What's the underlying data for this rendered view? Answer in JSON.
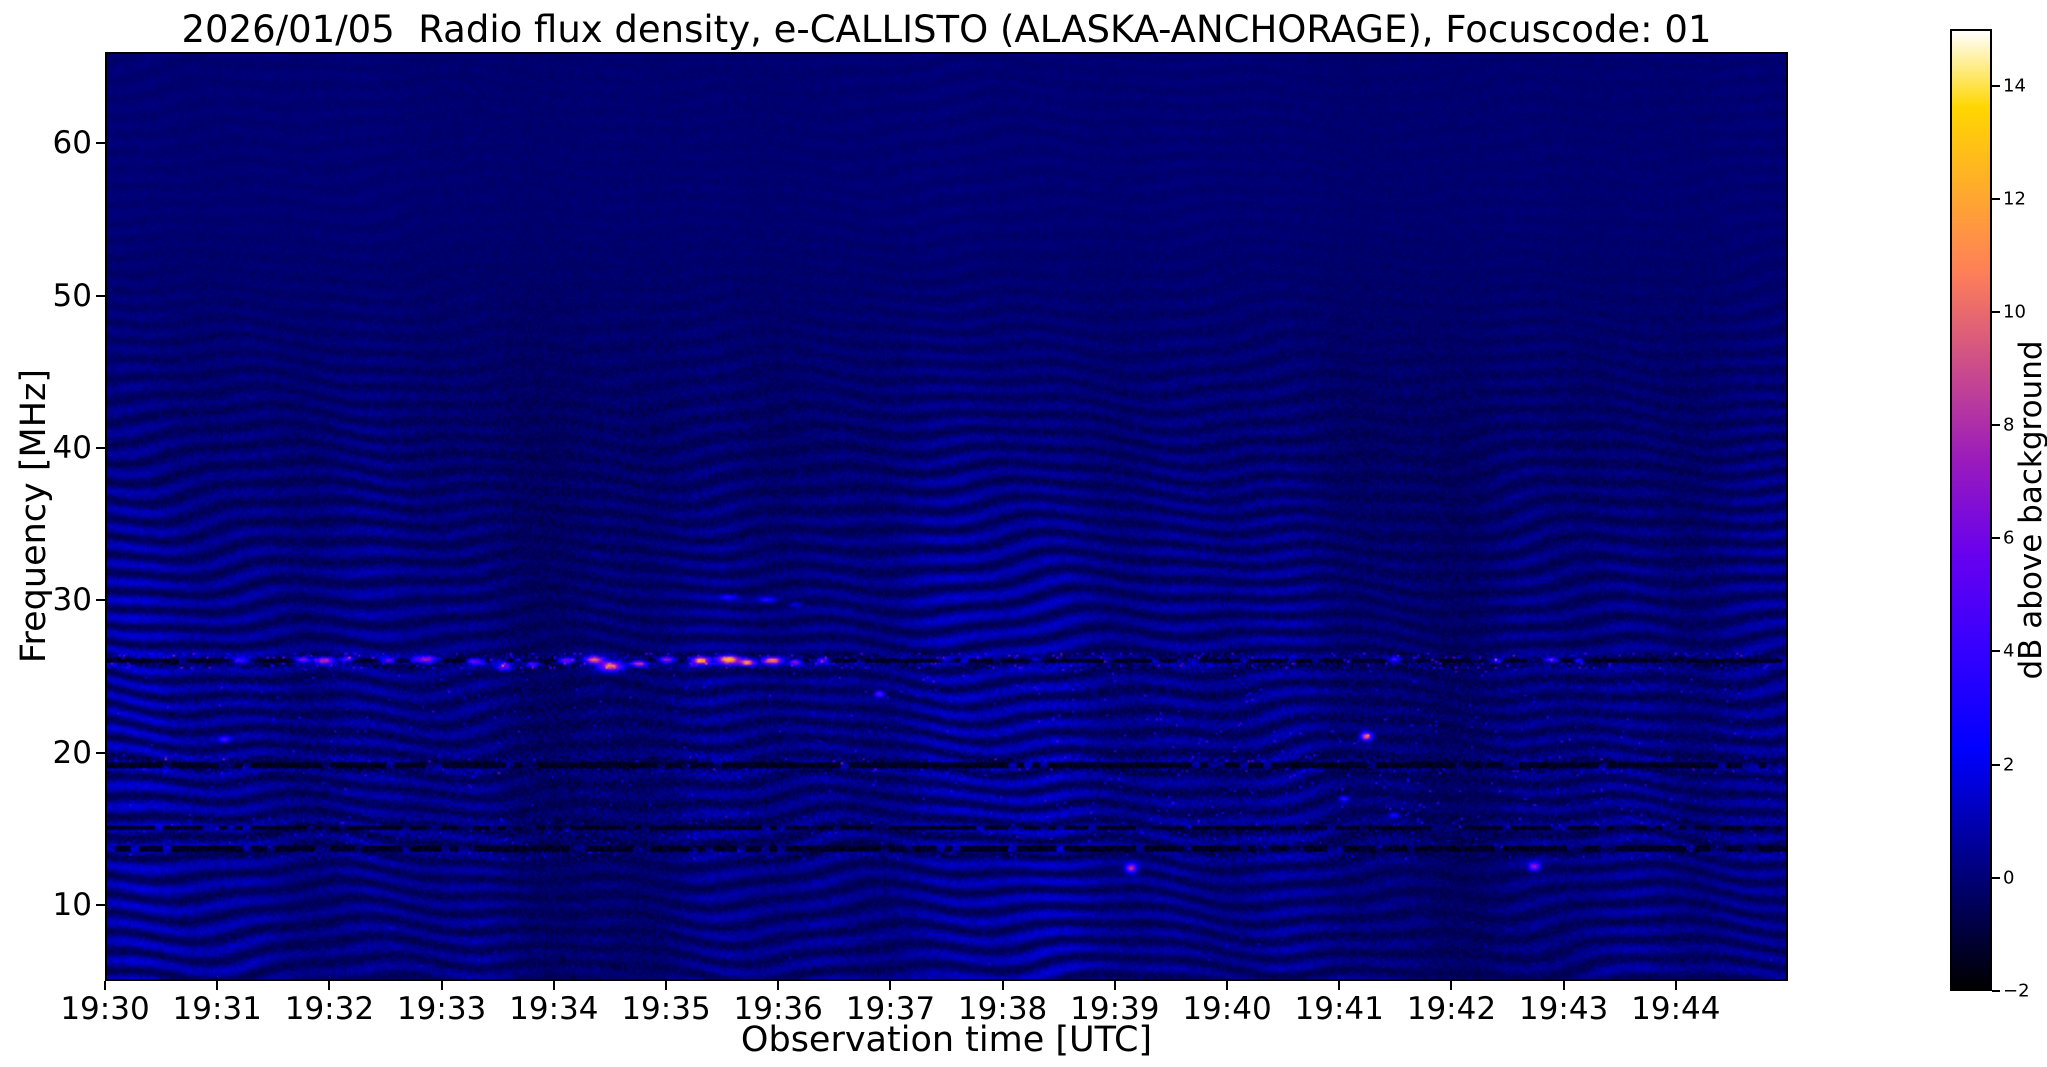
{
  "chart_data": {
    "type": "heatmap",
    "title": "2026/01/05  Radio flux density, e-CALLISTO (ALASKA-ANCHORAGE), Focuscode: 01",
    "xlabel": "Observation time [UTC]",
    "ylabel": "Frequency [MHz]",
    "colorbar_label": "dB above background",
    "x_range_minutes_after_1930utc": [
      0,
      15
    ],
    "y_range_mhz": [
      5,
      66
    ],
    "value_range_db": [
      -2,
      15
    ],
    "x_ticks": [
      {
        "label": "19:30",
        "minute": 0
      },
      {
        "label": "19:31",
        "minute": 1
      },
      {
        "label": "19:32",
        "minute": 2
      },
      {
        "label": "19:33",
        "minute": 3
      },
      {
        "label": "19:34",
        "minute": 4
      },
      {
        "label": "19:35",
        "minute": 5
      },
      {
        "label": "19:36",
        "minute": 6
      },
      {
        "label": "19:37",
        "minute": 7
      },
      {
        "label": "19:38",
        "minute": 8
      },
      {
        "label": "19:39",
        "minute": 9
      },
      {
        "label": "19:40",
        "minute": 10
      },
      {
        "label": "19:41",
        "minute": 11
      },
      {
        "label": "19:42",
        "minute": 12
      },
      {
        "label": "19:43",
        "minute": 13
      },
      {
        "label": "19:44",
        "minute": 14
      }
    ],
    "y_ticks": [
      {
        "label": "10",
        "mhz": 10
      },
      {
        "label": "20",
        "mhz": 20
      },
      {
        "label": "30",
        "mhz": 30
      },
      {
        "label": "40",
        "mhz": 40
      },
      {
        "label": "50",
        "mhz": 50
      },
      {
        "label": "60",
        "mhz": 60
      }
    ],
    "colorbar_ticks": [
      {
        "label": "−2",
        "db": -2
      },
      {
        "label": "0",
        "db": 0
      },
      {
        "label": "2",
        "db": 2
      },
      {
        "label": "4",
        "db": 4
      },
      {
        "label": "6",
        "db": 6
      },
      {
        "label": "8",
        "db": 8
      },
      {
        "label": "10",
        "db": 10
      },
      {
        "label": "12",
        "db": 12
      },
      {
        "label": "14",
        "db": 14
      }
    ],
    "colormap": {
      "name": "gnuplot2-like",
      "stops": [
        [
          0.0,
          "#000000"
        ],
        [
          0.1,
          "#000066"
        ],
        [
          0.2,
          "#0000cc"
        ],
        [
          0.25,
          "#0000ff"
        ],
        [
          0.35,
          "#3300ff"
        ],
        [
          0.45,
          "#6600f0"
        ],
        [
          0.55,
          "#991abd"
        ],
        [
          0.65,
          "#cc4d8a"
        ],
        [
          0.75,
          "#ff8057"
        ],
        [
          0.85,
          "#ffb324"
        ],
        [
          0.92,
          "#ffd600"
        ],
        [
          0.96,
          "#ffeb80"
        ],
        [
          1.0,
          "#ffffff"
        ]
      ]
    },
    "features": {
      "background_db": 0,
      "ionospheric_ripples": {
        "wavelength_mhz": 1.2,
        "amp_db_low_freq": 1.5,
        "fade_above_mhz": 30,
        "gone_above_mhz": 52
      },
      "speckle_bands": [
        {
          "f0": 25.5,
          "f1": 26.5,
          "boost": 0.9,
          "p": 0.96,
          "spike": 3.5
        },
        {
          "f0": 18.55,
          "f1": 19.7,
          "boost": 0.45,
          "p": 0.985,
          "spike": 2.0
        },
        {
          "f0": 12.9,
          "f1": 15.6,
          "boost": 0.5,
          "p": 0.985,
          "spike": 2.0
        },
        {
          "f0": 15.6,
          "f1": 25.4,
          "boost": 0.28,
          "p": 0.995,
          "spike": 2.5
        },
        {
          "f0": 5.0,
          "f1": 9.0,
          "boost": 0.15,
          "p": 0.999,
          "spike": 1.5
        }
      ],
      "speckle_rects": [
        {
          "t0": 8.4,
          "t1": 13.6,
          "f0": 15.0,
          "f1": 22.5,
          "p": 0.993,
          "spike": 3.0
        }
      ],
      "dark_lines": [
        {
          "f": 26.02,
          "w": 0.16,
          "gap": 0.8
        },
        {
          "f": 19.15,
          "w": 0.2,
          "gap": 0.82
        },
        {
          "f": 14.95,
          "w": 0.16,
          "gap": 0.72
        },
        {
          "f": 13.55,
          "w": 0.2,
          "gap": 0.78
        }
      ],
      "bursts_t_f_db_sigt_sigf": [
        [
          1.2,
          26.0,
          5.0,
          0.06,
          0.14
        ],
        [
          1.75,
          26.05,
          8.0,
          0.05,
          0.13
        ],
        [
          1.95,
          26.0,
          10.0,
          0.06,
          0.15
        ],
        [
          2.15,
          26.1,
          7.0,
          0.04,
          0.12
        ],
        [
          2.5,
          26.0,
          6.0,
          0.05,
          0.12
        ],
        [
          2.85,
          26.05,
          9.0,
          0.07,
          0.15
        ],
        [
          3.3,
          25.95,
          7.0,
          0.05,
          0.13
        ],
        [
          3.55,
          25.6,
          6.0,
          0.05,
          0.18
        ],
        [
          3.8,
          25.75,
          6.0,
          0.04,
          0.14
        ],
        [
          4.1,
          26.0,
          8.0,
          0.05,
          0.13
        ],
        [
          4.35,
          26.05,
          12.0,
          0.06,
          0.16
        ],
        [
          4.5,
          25.65,
          11.0,
          0.07,
          0.22
        ],
        [
          4.75,
          25.8,
          9.0,
          0.05,
          0.15
        ],
        [
          5.0,
          26.05,
          9.0,
          0.05,
          0.13
        ],
        [
          5.3,
          26.0,
          13.0,
          0.06,
          0.16
        ],
        [
          5.55,
          26.05,
          15.0,
          0.07,
          0.18
        ],
        [
          5.72,
          25.9,
          12.0,
          0.05,
          0.15
        ],
        [
          5.95,
          26.0,
          13.0,
          0.06,
          0.16
        ],
        [
          6.15,
          25.9,
          8.0,
          0.04,
          0.13
        ],
        [
          6.4,
          26.0,
          6.0,
          0.04,
          0.12
        ],
        [
          7.5,
          26.0,
          3.5,
          0.04,
          0.1
        ],
        [
          8.3,
          26.05,
          3.0,
          0.04,
          0.1
        ],
        [
          9.7,
          26.0,
          3.5,
          0.04,
          0.1
        ],
        [
          11.5,
          26.05,
          6.0,
          0.04,
          0.11
        ],
        [
          12.4,
          26.0,
          4.5,
          0.04,
          0.1
        ],
        [
          12.9,
          26.05,
          6.0,
          0.04,
          0.11
        ],
        [
          13.15,
          26.0,
          4.5,
          0.03,
          0.1
        ],
        [
          1.05,
          20.8,
          4.5,
          0.03,
          0.12
        ],
        [
          6.9,
          23.8,
          6.5,
          0.03,
          0.14
        ],
        [
          9.15,
          12.3,
          9.0,
          0.035,
          0.2
        ],
        [
          11.25,
          21.0,
          11.0,
          0.035,
          0.18
        ],
        [
          11.05,
          16.9,
          4.5,
          0.03,
          0.12
        ],
        [
          11.5,
          15.8,
          4.0,
          0.03,
          0.12
        ],
        [
          12.75,
          12.4,
          7.5,
          0.035,
          0.2
        ],
        [
          5.55,
          30.2,
          3.0,
          0.05,
          0.12
        ],
        [
          5.9,
          30.0,
          3.5,
          0.05,
          0.12
        ],
        [
          6.15,
          29.7,
          2.5,
          0.04,
          0.12
        ]
      ]
    }
  }
}
